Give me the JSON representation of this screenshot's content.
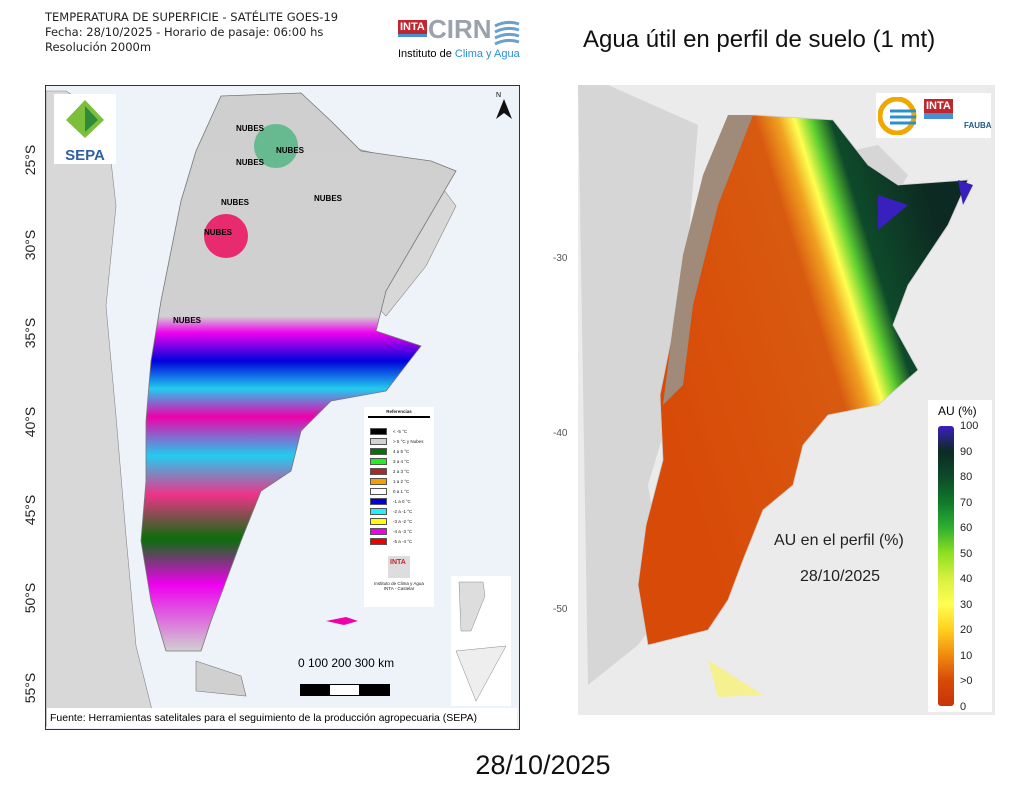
{
  "left_map": {
    "header_lines": [
      "TEMPERATURA DE SUPERFICIE - SATÉLITE GOES-19",
      "Fecha: 28/10/2025 - Horario de pasaje: 06:00 hs",
      "Resolución 2000m"
    ],
    "logo_cirn": {
      "inta": "INTA",
      "cirn": "CIRN",
      "subtitle_a": "Instituto de ",
      "subtitle_b": "Clima y Agua"
    },
    "sepa_logo": "SEPA",
    "north_label": "N",
    "lat_labels": [
      "25°S",
      "30°S",
      "35°S",
      "40°S",
      "45°S",
      "50°S",
      "55°S"
    ],
    "cloud_labels": [
      "NUBES",
      "NUBES",
      "NUBES",
      "NUBES",
      "NUBES",
      "NUBES",
      "NUBES"
    ],
    "legend": {
      "title": "Referencias",
      "items": [
        {
          "label": "< -5 °C",
          "color": "#000000"
        },
        {
          "label": "> 5 °C y Nubes",
          "color": "#d3d3d3"
        },
        {
          "label": "4 a 5 °C",
          "color": "#0a6e0a"
        },
        {
          "label": "3 a 4 °C",
          "color": "#22ee22"
        },
        {
          "label": "2 a 3 °C",
          "color": "#a52a2a"
        },
        {
          "label": "1 a 2 °C",
          "color": "#f5a000"
        },
        {
          "label": "0 a 1 °C",
          "color": "#ffffff"
        },
        {
          "label": "-1 a 0 °C",
          "color": "#0000dd"
        },
        {
          "label": "-2 a -1 °C",
          "color": "#22eeff"
        },
        {
          "label": "-3 a -2 °C",
          "color": "#ffff00"
        },
        {
          "label": "-4 a -3 °C",
          "color": "#ee00ee"
        },
        {
          "label": "-5 a -4 °C",
          "color": "#ee0000"
        }
      ],
      "logo": "INTA",
      "institute": "Instituto de Clima y Agua",
      "institute2": "INTA - Castelar"
    },
    "scale_labels": "0   100  200  300 km",
    "source": "Fuente: Herramientas satelitales para el seguimiento de la producción agropecuaria (SEPA)"
  },
  "right_map": {
    "title": "Agua útil en perfil de suelo (1 mt)",
    "lat_ticks": [
      "-30",
      "-40",
      "-50"
    ],
    "logos": [
      "INTA",
      "FAUBA"
    ],
    "annotation_line1": "AU en el perfil (%)",
    "annotation_line2": "28/10/2025",
    "colorbar": {
      "title": "AU (%)",
      "labels": [
        "100",
        "90",
        "80",
        "70",
        "60",
        "50",
        "40",
        "30",
        "20",
        "10",
        ">0",
        "0"
      ],
      "colors": [
        "#3a1fbf",
        "#0d2a22",
        "#0e4a2a",
        "#0f7a2a",
        "#30b030",
        "#8ee020",
        "#d8f040",
        "#ffff50",
        "#ffd020",
        "#f08a10",
        "#d84a08",
        "#c83408"
      ]
    }
  },
  "footer_date": "28/10/2025"
}
